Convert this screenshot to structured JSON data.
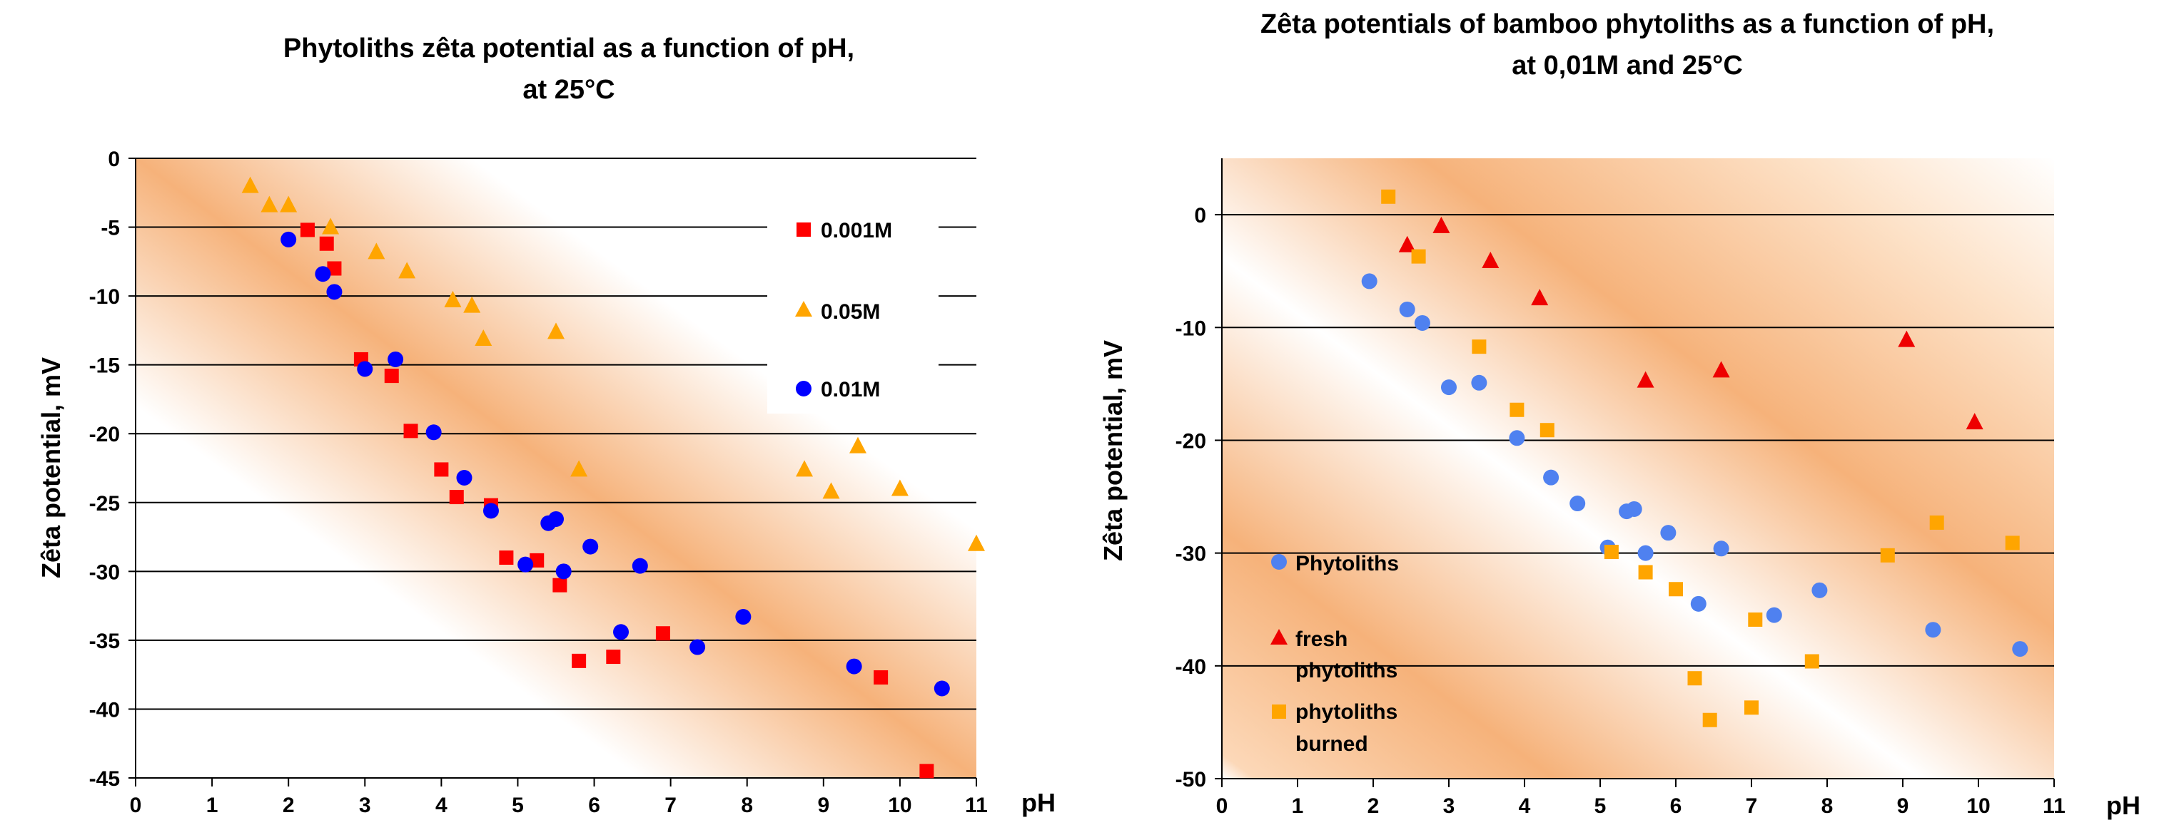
{
  "chart_data": [
    {
      "type": "scatter",
      "title_line1": "Phytoliths zêta potential as a function of pH,",
      "title_line2": "at 25°C",
      "xlabel": "pH",
      "ylabel": "Zêta potential, mV",
      "xlim": [
        0,
        11
      ],
      "ylim": [
        -45,
        0
      ],
      "x_ticks": [
        "0",
        "1",
        "2",
        "3",
        "4",
        "5",
        "6",
        "7",
        "8",
        "9",
        "10",
        "11"
      ],
      "y_ticks": [
        "0",
        "-5",
        "-10",
        "-15",
        "-20",
        "-25",
        "-30",
        "-35",
        "-40",
        "-45"
      ],
      "grid": "horizontal",
      "legend_position": "top-right",
      "series": [
        {
          "name": "0.001M",
          "marker": "square",
          "color": "#ff0000",
          "points": [
            [
              2.25,
              -5.2
            ],
            [
              2.5,
              -6.2
            ],
            [
              2.6,
              -8.0
            ],
            [
              2.95,
              -14.6
            ],
            [
              3.35,
              -15.8
            ],
            [
              3.6,
              -19.8
            ],
            [
              4.0,
              -22.6
            ],
            [
              4.2,
              -24.6
            ],
            [
              4.65,
              -25.2
            ],
            [
              4.85,
              -29.0
            ],
            [
              5.25,
              -29.2
            ],
            [
              5.55,
              -31.0
            ],
            [
              5.8,
              -36.5
            ],
            [
              6.25,
              -36.2
            ],
            [
              6.9,
              -34.5
            ],
            [
              9.75,
              -37.7
            ],
            [
              10.35,
              -44.5
            ]
          ]
        },
        {
          "name": "0.05M",
          "marker": "triangle",
          "color": "#ffa500",
          "points": [
            [
              1.5,
              -2.0
            ],
            [
              1.75,
              -3.4
            ],
            [
              2.0,
              -3.4
            ],
            [
              2.55,
              -5.0
            ],
            [
              3.15,
              -6.8
            ],
            [
              3.55,
              -8.2
            ],
            [
              4.15,
              -10.3
            ],
            [
              4.4,
              -10.7
            ],
            [
              4.55,
              -13.1
            ],
            [
              5.5,
              -12.6
            ],
            [
              5.8,
              -22.6
            ],
            [
              8.75,
              -22.6
            ],
            [
              9.1,
              -24.2
            ],
            [
              9.45,
              -20.9
            ],
            [
              10.0,
              -24.0
            ],
            [
              11.0,
              -28.0
            ]
          ]
        },
        {
          "name": "0.01M",
          "marker": "circle",
          "color": "#0000ff",
          "points": [
            [
              2.0,
              -5.9
            ],
            [
              2.45,
              -8.4
            ],
            [
              2.6,
              -9.7
            ],
            [
              3.0,
              -15.3
            ],
            [
              3.4,
              -14.6
            ],
            [
              3.9,
              -19.9
            ],
            [
              4.3,
              -23.2
            ],
            [
              4.65,
              -25.6
            ],
            [
              5.1,
              -29.5
            ],
            [
              5.4,
              -26.5
            ],
            [
              5.5,
              -26.2
            ],
            [
              5.6,
              -30.0
            ],
            [
              5.95,
              -28.2
            ],
            [
              6.35,
              -34.4
            ],
            [
              6.6,
              -29.6
            ],
            [
              7.35,
              -35.5
            ],
            [
              7.95,
              -33.3
            ],
            [
              9.4,
              -36.9
            ],
            [
              10.55,
              -38.5
            ]
          ]
        }
      ]
    },
    {
      "type": "scatter",
      "title_line1": "Zêta potentials of bamboo phytoliths as a function of pH,",
      "title_line2": "at 0,01M and 25°C",
      "xlabel": "pH",
      "ylabel": "Zêta potential, mV",
      "xlim": [
        0,
        11
      ],
      "ylim": [
        -50,
        5
      ],
      "x_ticks": [
        "0",
        "1",
        "2",
        "3",
        "4",
        "5",
        "6",
        "7",
        "8",
        "9",
        "10",
        "11"
      ],
      "y_ticks": [
        "0",
        "-10",
        "-20",
        "-30",
        "-40",
        "-50"
      ],
      "grid": "horizontal",
      "legend_position": "left",
      "series": [
        {
          "name": "Phytoliths",
          "marker": "circle",
          "color": "#4f81f0",
          "points": [
            [
              1.95,
              -5.9
            ],
            [
              2.45,
              -8.4
            ],
            [
              2.65,
              -9.6
            ],
            [
              3.0,
              -15.3
            ],
            [
              3.4,
              -14.9
            ],
            [
              3.9,
              -19.8
            ],
            [
              4.35,
              -23.3
            ],
            [
              4.7,
              -25.6
            ],
            [
              5.1,
              -29.5
            ],
            [
              5.35,
              -26.3
            ],
            [
              5.45,
              -26.1
            ],
            [
              5.6,
              -30.0
            ],
            [
              5.9,
              -28.2
            ],
            [
              6.3,
              -34.5
            ],
            [
              6.6,
              -29.6
            ],
            [
              7.3,
              -35.5
            ],
            [
              7.9,
              -33.3
            ],
            [
              9.4,
              -36.8
            ],
            [
              10.55,
              -38.5
            ]
          ]
        },
        {
          "name_line1": "fresh",
          "name_line2": "phytoliths",
          "marker": "triangle",
          "color": "#ee0000",
          "points": [
            [
              2.45,
              -2.7
            ],
            [
              2.9,
              -1.0
            ],
            [
              3.55,
              -4.1
            ],
            [
              4.2,
              -7.4
            ],
            [
              5.6,
              -14.7
            ],
            [
              6.6,
              -13.8
            ],
            [
              9.05,
              -11.1
            ],
            [
              9.95,
              -18.4
            ]
          ]
        },
        {
          "name_line1": "phytoliths",
          "name_line2": "burned",
          "marker": "square",
          "color": "#ffa500",
          "points": [
            [
              2.2,
              1.6
            ],
            [
              2.6,
              -3.7
            ],
            [
              3.4,
              -11.7
            ],
            [
              3.9,
              -17.3
            ],
            [
              4.3,
              -19.1
            ],
            [
              5.15,
              -29.9
            ],
            [
              5.6,
              -31.7
            ],
            [
              6.0,
              -33.2
            ],
            [
              6.25,
              -41.1
            ],
            [
              6.45,
              -44.8
            ],
            [
              7.05,
              -35.9
            ],
            [
              7.0,
              -43.7
            ],
            [
              7.8,
              -39.6
            ],
            [
              8.8,
              -30.2
            ],
            [
              9.45,
              -27.3
            ],
            [
              10.45,
              -29.1
            ]
          ]
        }
      ]
    }
  ]
}
